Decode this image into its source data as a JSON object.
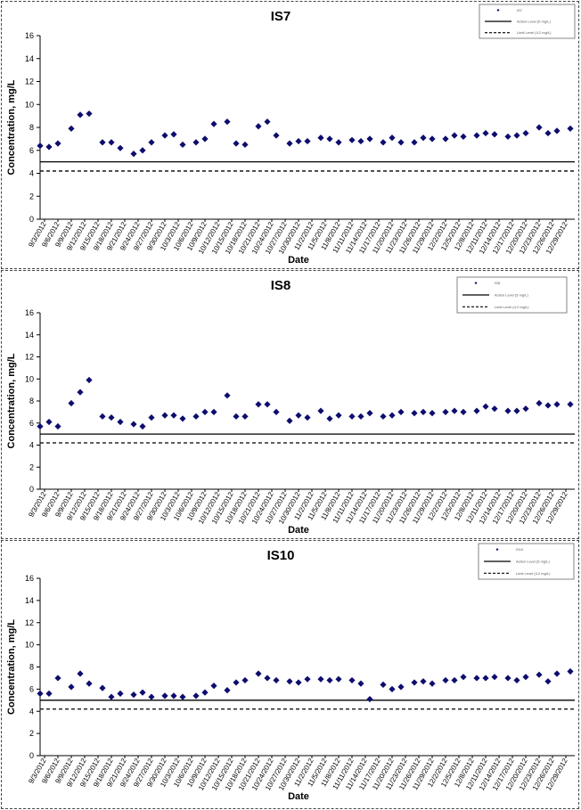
{
  "chart_data": [
    {
      "type": "scatter",
      "title": "IS7",
      "xlabel": "Date",
      "ylabel": "Concentration, mg/L",
      "ylim": [
        0,
        16
      ],
      "yticks": [
        "0",
        "2",
        "4",
        "6",
        "8",
        "10",
        "12",
        "14",
        "16"
      ],
      "x_ticks": [
        "9/3/2012",
        "9/6/2012",
        "9/9/2012",
        "9/12/2012",
        "9/15/2012",
        "9/18/2012",
        "9/21/2012",
        "9/24/2012",
        "9/27/2012",
        "9/30/2012",
        "10/3/2012",
        "10/6/2012",
        "10/9/2012",
        "10/12/2012",
        "10/15/2012",
        "10/18/2012",
        "10/21/2012",
        "10/24/2012",
        "10/27/2012",
        "10/30/2012",
        "11/2/2012",
        "11/5/2012",
        "11/8/2012",
        "11/11/2012",
        "11/14/2012",
        "11/17/2012",
        "11/20/2012",
        "11/23/2012",
        "11/26/2012",
        "11/29/2012",
        "12/2/2012",
        "12/5/2012",
        "12/8/2012",
        "12/11/2012",
        "12/14/2012",
        "12/17/2012",
        "12/20/2012",
        "12/23/2012",
        "12/26/2012",
        "12/29/2012"
      ],
      "x_range": [
        "9/2/2012",
        "12/31/2012"
      ],
      "legend_placement": "top-right",
      "legend": [
        "IS7",
        "Action Level (5 mg/L)",
        "Limit Level (4.2 mg/L)"
      ],
      "reference_lines": [
        {
          "y": 5.0,
          "style": "solid"
        },
        {
          "y": 4.2,
          "style": "dashed"
        }
      ],
      "series": [
        {
          "marker": "diamond",
          "color": "#0d0d6e",
          "points": [
            [
              "9/2/2012",
              6.4
            ],
            [
              "9/4/2012",
              6.3
            ],
            [
              "9/6/2012",
              6.6
            ],
            [
              "9/9/2012",
              7.9
            ],
            [
              "9/11/2012",
              9.1
            ],
            [
              "9/13/2012",
              9.2
            ],
            [
              "9/16/2012",
              6.7
            ],
            [
              "9/18/2012",
              6.7
            ],
            [
              "9/20/2012",
              6.2
            ],
            [
              "9/23/2012",
              5.7
            ],
            [
              "9/25/2012",
              6.0
            ],
            [
              "9/27/2012",
              6.7
            ],
            [
              "9/30/2012",
              7.3
            ],
            [
              "10/2/2012",
              7.4
            ],
            [
              "10/4/2012",
              6.5
            ],
            [
              "10/7/2012",
              6.7
            ],
            [
              "10/9/2012",
              7.0
            ],
            [
              "10/11/2012",
              8.3
            ],
            [
              "10/14/2012",
              8.5
            ],
            [
              "10/16/2012",
              6.6
            ],
            [
              "10/18/2012",
              6.5
            ],
            [
              "10/21/2012",
              8.1
            ],
            [
              "10/23/2012",
              8.5
            ],
            [
              "10/25/2012",
              7.3
            ],
            [
              "10/28/2012",
              6.6
            ],
            [
              "10/30/2012",
              6.8
            ],
            [
              "11/1/2012",
              6.8
            ],
            [
              "11/4/2012",
              7.1
            ],
            [
              "11/6/2012",
              7.0
            ],
            [
              "11/8/2012",
              6.7
            ],
            [
              "11/11/2012",
              6.9
            ],
            [
              "11/13/2012",
              6.8
            ],
            [
              "11/15/2012",
              7.0
            ],
            [
              "11/18/2012",
              6.7
            ],
            [
              "11/20/2012",
              7.1
            ],
            [
              "11/22/2012",
              6.7
            ],
            [
              "11/25/2012",
              6.7
            ],
            [
              "11/27/2012",
              7.1
            ],
            [
              "11/29/2012",
              7.0
            ],
            [
              "12/2/2012",
              7.0
            ],
            [
              "12/4/2012",
              7.3
            ],
            [
              "12/6/2012",
              7.2
            ],
            [
              "12/9/2012",
              7.3
            ],
            [
              "12/11/2012",
              7.5
            ],
            [
              "12/13/2012",
              7.4
            ],
            [
              "12/16/2012",
              7.2
            ],
            [
              "12/18/2012",
              7.3
            ],
            [
              "12/20/2012",
              7.5
            ],
            [
              "12/23/2012",
              8.0
            ],
            [
              "12/25/2012",
              7.5
            ],
            [
              "12/27/2012",
              7.7
            ],
            [
              "12/30/2012",
              7.9
            ]
          ]
        }
      ]
    },
    {
      "type": "scatter",
      "title": "IS8",
      "xlabel": "Date",
      "ylabel": "Concentration, mg/L",
      "ylim": [
        0,
        16
      ],
      "yticks": [
        "0",
        "2",
        "4",
        "6",
        "8",
        "10",
        "12",
        "14",
        "16"
      ],
      "x_ticks": [
        "9/3/2012",
        "9/6/2012",
        "9/9/2012",
        "9/12/2012",
        "9/15/2012",
        "9/18/2012",
        "9/21/2012",
        "9/24/2012",
        "9/27/2012",
        "9/30/2012",
        "10/3/2012",
        "10/6/2012",
        "10/9/2012",
        "10/12/2012",
        "10/15/2012",
        "10/18/2012",
        "10/21/2012",
        "10/24/2012",
        "10/27/2012",
        "10/30/2012",
        "11/2/2012",
        "11/5/2012",
        "11/8/2012",
        "11/11/2012",
        "11/14/2012",
        "11/17/2012",
        "11/20/2012",
        "11/23/2012",
        "11/26/2012",
        "11/29/2012",
        "12/2/2012",
        "12/5/2012",
        "12/8/2012",
        "12/11/2012",
        "12/14/2012",
        "12/17/2012",
        "12/20/2012",
        "12/23/2012",
        "12/26/2012",
        "12/29/2012"
      ],
      "x_range": [
        "9/2/2012",
        "12/31/2012"
      ],
      "legend_placement": "top-right",
      "legend": [
        "IS8",
        "Action Level (5 mg/L)",
        "Limit Level (4.2 mg/L)"
      ],
      "reference_lines": [
        {
          "y": 5.0,
          "style": "solid"
        },
        {
          "y": 4.2,
          "style": "dashed"
        }
      ],
      "series": [
        {
          "marker": "diamond",
          "color": "#0d0d6e",
          "points": [
            [
              "9/2/2012",
              5.7
            ],
            [
              "9/4/2012",
              6.1
            ],
            [
              "9/6/2012",
              5.7
            ],
            [
              "9/9/2012",
              7.8
            ],
            [
              "9/11/2012",
              8.8
            ],
            [
              "9/13/2012",
              9.9
            ],
            [
              "9/16/2012",
              6.6
            ],
            [
              "9/18/2012",
              6.5
            ],
            [
              "9/20/2012",
              6.1
            ],
            [
              "9/23/2012",
              5.9
            ],
            [
              "9/25/2012",
              5.7
            ],
            [
              "9/27/2012",
              6.5
            ],
            [
              "9/30/2012",
              6.7
            ],
            [
              "10/2/2012",
              6.7
            ],
            [
              "10/4/2012",
              6.4
            ],
            [
              "10/7/2012",
              6.6
            ],
            [
              "10/9/2012",
              7.0
            ],
            [
              "10/11/2012",
              7.0
            ],
            [
              "10/14/2012",
              8.5
            ],
            [
              "10/16/2012",
              6.6
            ],
            [
              "10/18/2012",
              6.6
            ],
            [
              "10/21/2012",
              7.7
            ],
            [
              "10/23/2012",
              7.7
            ],
            [
              "10/25/2012",
              7.0
            ],
            [
              "10/28/2012",
              6.2
            ],
            [
              "10/30/2012",
              6.7
            ],
            [
              "11/1/2012",
              6.5
            ],
            [
              "11/4/2012",
              7.1
            ],
            [
              "11/6/2012",
              6.4
            ],
            [
              "11/8/2012",
              6.7
            ],
            [
              "11/11/2012",
              6.6
            ],
            [
              "11/13/2012",
              6.6
            ],
            [
              "11/15/2012",
              6.9
            ],
            [
              "11/18/2012",
              6.6
            ],
            [
              "11/20/2012",
              6.7
            ],
            [
              "11/22/2012",
              7.0
            ],
            [
              "11/25/2012",
              6.9
            ],
            [
              "11/27/2012",
              7.0
            ],
            [
              "11/29/2012",
              6.9
            ],
            [
              "12/2/2012",
              7.0
            ],
            [
              "12/4/2012",
              7.1
            ],
            [
              "12/6/2012",
              7.0
            ],
            [
              "12/9/2012",
              7.1
            ],
            [
              "12/11/2012",
              7.5
            ],
            [
              "12/13/2012",
              7.3
            ],
            [
              "12/16/2012",
              7.1
            ],
            [
              "12/18/2012",
              7.1
            ],
            [
              "12/20/2012",
              7.3
            ],
            [
              "12/23/2012",
              7.8
            ],
            [
              "12/25/2012",
              7.6
            ],
            [
              "12/27/2012",
              7.7
            ],
            [
              "12/30/2012",
              7.7
            ]
          ]
        }
      ]
    },
    {
      "type": "scatter",
      "title": "IS10",
      "xlabel": "Date",
      "ylabel": "Concentration, mg/L",
      "ylim": [
        0,
        16
      ],
      "yticks": [
        "0",
        "2",
        "4",
        "6",
        "8",
        "10",
        "12",
        "14",
        "16"
      ],
      "x_ticks": [
        "9/3/2012",
        "9/6/2012",
        "9/9/2012",
        "9/12/2012",
        "9/15/2012",
        "9/18/2012",
        "9/21/2012",
        "9/24/2012",
        "9/27/2012",
        "9/30/2012",
        "10/3/2012",
        "10/6/2012",
        "10/9/2012",
        "10/12/2012",
        "10/15/2012",
        "10/18/2012",
        "10/21/2012",
        "10/24/2012",
        "10/27/2012",
        "10/30/2012",
        "11/2/2012",
        "11/5/2012",
        "11/8/2012",
        "11/11/2012",
        "11/14/2012",
        "11/17/2012",
        "11/20/2012",
        "11/23/2012",
        "11/26/2012",
        "11/29/2012",
        "12/2/2012",
        "12/5/2012",
        "12/8/2012",
        "12/11/2012",
        "12/14/2012",
        "12/17/2012",
        "12/20/2012",
        "12/23/2012",
        "12/26/2012",
        "12/29/2012"
      ],
      "x_range": [
        "9/2/2012",
        "12/31/2012"
      ],
      "legend_placement": "top-right",
      "legend": [
        "IS10",
        "Action Level (5 mg/L)",
        "Limit Level (4.2 mg/L)"
      ],
      "reference_lines": [
        {
          "y": 5.0,
          "style": "solid"
        },
        {
          "y": 4.2,
          "style": "dashed"
        }
      ],
      "series": [
        {
          "marker": "diamond",
          "color": "#0d0d6e",
          "points": [
            [
              "9/2/2012",
              5.6
            ],
            [
              "9/4/2012",
              5.6
            ],
            [
              "9/6/2012",
              7.0
            ],
            [
              "9/9/2012",
              6.2
            ],
            [
              "9/11/2012",
              7.4
            ],
            [
              "9/13/2012",
              6.5
            ],
            [
              "9/16/2012",
              6.1
            ],
            [
              "9/18/2012",
              5.3
            ],
            [
              "9/20/2012",
              5.6
            ],
            [
              "9/23/2012",
              5.5
            ],
            [
              "9/25/2012",
              5.7
            ],
            [
              "9/27/2012",
              5.3
            ],
            [
              "9/30/2012",
              5.4
            ],
            [
              "10/2/2012",
              5.4
            ],
            [
              "10/4/2012",
              5.3
            ],
            [
              "10/7/2012",
              5.4
            ],
            [
              "10/9/2012",
              5.7
            ],
            [
              "10/11/2012",
              6.3
            ],
            [
              "10/14/2012",
              5.9
            ],
            [
              "10/16/2012",
              6.6
            ],
            [
              "10/18/2012",
              6.8
            ],
            [
              "10/21/2012",
              7.4
            ],
            [
              "10/23/2012",
              7.0
            ],
            [
              "10/25/2012",
              6.8
            ],
            [
              "10/28/2012",
              6.7
            ],
            [
              "10/30/2012",
              6.6
            ],
            [
              "11/1/2012",
              6.9
            ],
            [
              "11/4/2012",
              6.9
            ],
            [
              "11/6/2012",
              6.8
            ],
            [
              "11/8/2012",
              6.9
            ],
            [
              "11/11/2012",
              6.8
            ],
            [
              "11/13/2012",
              6.5
            ],
            [
              "11/15/2012",
              5.1
            ],
            [
              "11/18/2012",
              6.4
            ],
            [
              "11/20/2012",
              6.0
            ],
            [
              "11/22/2012",
              6.2
            ],
            [
              "11/25/2012",
              6.6
            ],
            [
              "11/27/2012",
              6.7
            ],
            [
              "11/29/2012",
              6.5
            ],
            [
              "12/2/2012",
              6.8
            ],
            [
              "12/4/2012",
              6.8
            ],
            [
              "12/6/2012",
              7.1
            ],
            [
              "12/9/2012",
              7.0
            ],
            [
              "12/11/2012",
              7.0
            ],
            [
              "12/13/2012",
              7.1
            ],
            [
              "12/16/2012",
              7.0
            ],
            [
              "12/18/2012",
              6.8
            ],
            [
              "12/20/2012",
              7.1
            ],
            [
              "12/23/2012",
              7.3
            ],
            [
              "12/25/2012",
              6.7
            ],
            [
              "12/27/2012",
              7.4
            ],
            [
              "12/30/2012",
              7.6
            ]
          ]
        }
      ]
    }
  ]
}
